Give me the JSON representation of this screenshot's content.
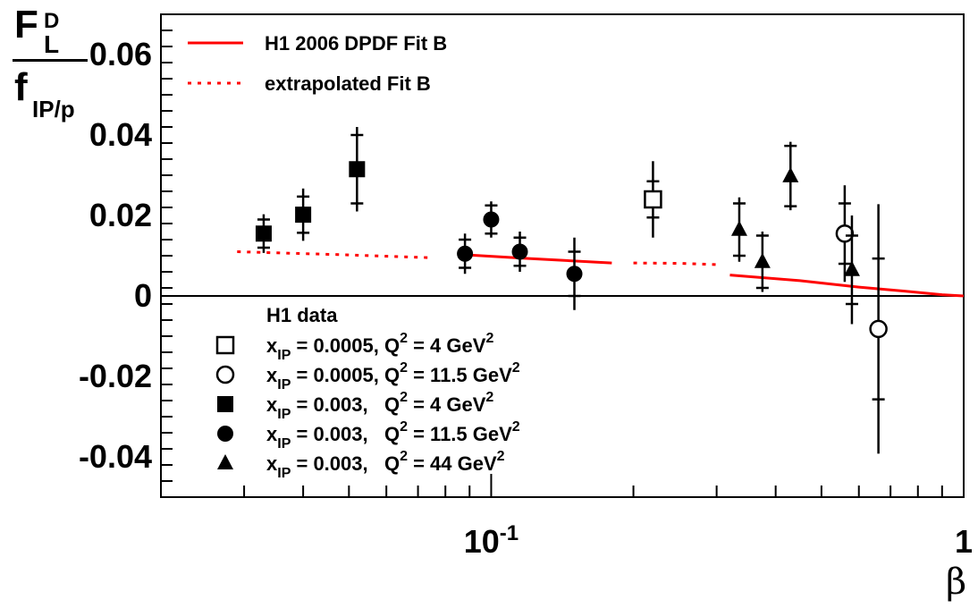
{
  "chart_data": {
    "type": "scatter",
    "title": "",
    "xlabel": "β",
    "ylabel": {
      "main": "F",
      "sup": "D",
      "sub": "L",
      "den_main": "f",
      "den_sub": "IP/p"
    },
    "x_scale": "log",
    "xlim": [
      0.02,
      1.0
    ],
    "ylim": [
      -0.05,
      0.07
    ],
    "xticks": [
      {
        "value": 0.1,
        "base": "10",
        "exp": "-1"
      },
      {
        "value": 1,
        "base": "1",
        "exp": ""
      }
    ],
    "yticks": [
      {
        "value": -0.04,
        "label": "-0.04"
      },
      {
        "value": -0.02,
        "label": "-0.02"
      },
      {
        "value": 0,
        "label": "0"
      },
      {
        "value": 0.02,
        "label": "0.02"
      },
      {
        "value": 0.04,
        "label": "0.04"
      },
      {
        "value": 0.06,
        "label": "0.06"
      }
    ],
    "legend_top": [
      {
        "label": "H1 2006 DPDF Fit B",
        "style": "solid",
        "color": "#ff0000"
      },
      {
        "label": "extrapolated Fit B",
        "style": "dotted",
        "color": "#ff0000"
      }
    ],
    "legend_bottom_header": "H1 data",
    "lines": [
      {
        "name": "extrapolated Fit B",
        "style": "dotted",
        "color": "#ff0000",
        "x": [
          0.029,
          0.05,
          0.075
        ],
        "y": [
          0.011,
          0.0102,
          0.0095
        ]
      },
      {
        "name": "H1 2006 DPDF Fit B",
        "style": "solid",
        "color": "#ff0000",
        "x": [
          0.086,
          0.12,
          0.18
        ],
        "y": [
          0.0103,
          0.0093,
          0.0082
        ]
      },
      {
        "name": "extrapolated Fit B",
        "style": "dotted",
        "color": "#ff0000",
        "x": [
          0.2,
          0.25,
          0.3
        ],
        "y": [
          0.0082,
          0.0081,
          0.0078
        ]
      },
      {
        "name": "H1 2006 DPDF Fit B",
        "style": "solid",
        "color": "#ff0000",
        "x": [
          0.32,
          0.45,
          0.6,
          0.75,
          0.9,
          1.0
        ],
        "y": [
          0.0052,
          0.0038,
          0.0022,
          0.0012,
          0.0003,
          0.0
        ]
      }
    ],
    "series": [
      {
        "name": "x_IP = 0.0005, Q^2 = 4 GeV^2",
        "legend": {
          "pre": "x",
          "sub": "IP",
          "mid": " = 0.0005, Q",
          "sup": "2",
          "post": " = 4 GeV",
          "sup2": "2"
        },
        "marker": "open-square",
        "points": [
          {
            "x": 0.22,
            "y": 0.024,
            "stat": 0.0045,
            "tot": 0.0095
          }
        ]
      },
      {
        "name": "x_IP = 0.0005, Q^2 = 11.5 GeV^2",
        "legend": {
          "pre": "x",
          "sub": "IP",
          "mid": " = 0.0005, Q",
          "sup": "2",
          "post": " = 11.5 GeV",
          "sup2": "2"
        },
        "marker": "open-circle",
        "points": [
          {
            "x": 0.56,
            "y": 0.0155,
            "stat": 0.0075,
            "tot": 0.012
          },
          {
            "x": 0.66,
            "y": -0.0082,
            "stat": 0.0175,
            "tot": 0.031
          }
        ]
      },
      {
        "name": "x_IP = 0.003, Q^2 = 4 GeV^2",
        "legend": {
          "pre": "x",
          "sub": "IP",
          "mid": " = 0.003,   Q",
          "sup": "2",
          "post": " = 4 GeV",
          "sup2": "2"
        },
        "marker": "filled-square",
        "points": [
          {
            "x": 0.033,
            "y": 0.0155,
            "stat": 0.0035,
            "tot": 0.0048
          },
          {
            "x": 0.04,
            "y": 0.0202,
            "stat": 0.0045,
            "tot": 0.0065
          },
          {
            "x": 0.052,
            "y": 0.0315,
            "stat": 0.0085,
            "tot": 0.0105
          }
        ]
      },
      {
        "name": "x_IP = 0.003, Q^2 = 11.5 GeV^2",
        "legend": {
          "pre": "x",
          "sub": "IP",
          "mid": " = 0.003,   Q",
          "sup": "2",
          "post": " = 11.5 GeV",
          "sup2": "2"
        },
        "marker": "filled-circle",
        "points": [
          {
            "x": 0.088,
            "y": 0.0105,
            "stat": 0.0035,
            "tot": 0.005
          },
          {
            "x": 0.1,
            "y": 0.019,
            "stat": 0.0035,
            "tot": 0.0045
          },
          {
            "x": 0.115,
            "y": 0.011,
            "stat": 0.0035,
            "tot": 0.005
          },
          {
            "x": 0.15,
            "y": 0.0055,
            "stat": 0.0055,
            "tot": 0.009
          }
        ]
      },
      {
        "name": "x_IP = 0.003, Q^2 = 44 GeV^2",
        "legend": {
          "pre": "x",
          "sub": "IP",
          "mid": " = 0.003,   Q",
          "sup": "2",
          "post": " = 44 GeV",
          "sup2": "2"
        },
        "marker": "filled-triangle",
        "points": [
          {
            "x": 0.335,
            "y": 0.0165,
            "stat": 0.0065,
            "tot": 0.008
          },
          {
            "x": 0.375,
            "y": 0.0085,
            "stat": 0.0065,
            "tot": 0.0075
          },
          {
            "x": 0.43,
            "y": 0.0298,
            "stat": 0.0075,
            "tot": 0.0085
          },
          {
            "x": 0.58,
            "y": 0.0065,
            "stat": 0.0085,
            "tot": 0.0135
          }
        ]
      }
    ]
  }
}
